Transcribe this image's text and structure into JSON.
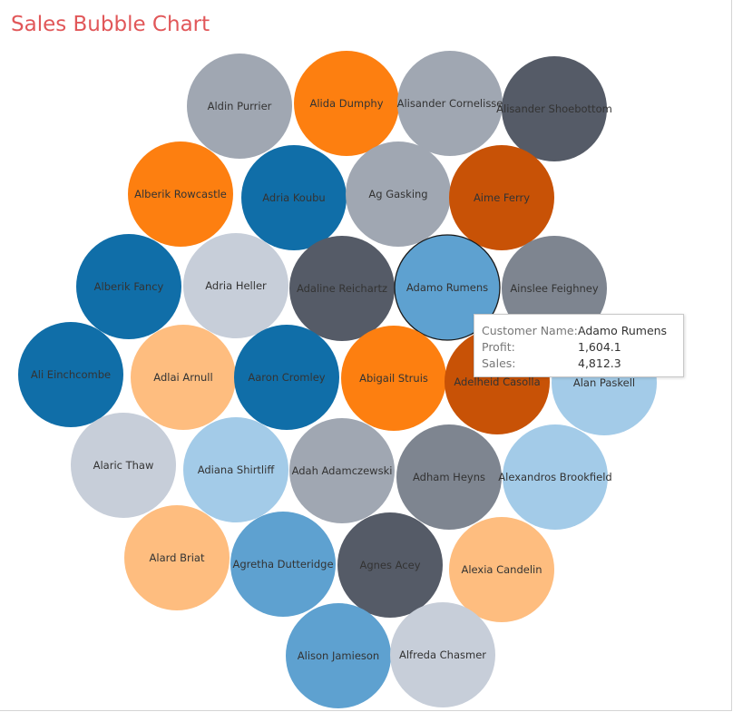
{
  "chart_data": {
    "type": "bubble",
    "title": "Sales Bubble Chart",
    "size_by": "Sales",
    "color_by": "Profit",
    "bubbles": [
      {
        "name": "Aldin Purrier",
        "color": "#a0a7b2"
      },
      {
        "name": "Alida Dumphy",
        "color": "#fd7f10"
      },
      {
        "name": "Alisander Cornelisse",
        "color": "#a0a7b2"
      },
      {
        "name": "Alisander Shoebottom",
        "color": "#555b67"
      },
      {
        "name": "Alberik Rowcastle",
        "color": "#fd7f10"
      },
      {
        "name": "Adria Koubu",
        "color": "#106ea8"
      },
      {
        "name": "Ag Gasking",
        "color": "#a0a7b2"
      },
      {
        "name": "Aime Ferry",
        "color": "#c85206"
      },
      {
        "name": "Alberik Fancy",
        "color": "#106ea8"
      },
      {
        "name": "Adria Heller",
        "color": "#c7ced9"
      },
      {
        "name": "Adaline Reichartz",
        "color": "#555b67"
      },
      {
        "name": "Adamo Rumens",
        "color": "#5ea1d0",
        "highlighted": true
      },
      {
        "name": "Ainslee Feighney",
        "color": "#7e8590"
      },
      {
        "name": "Ali Einchcombe",
        "color": "#106ea8"
      },
      {
        "name": "Adlai Arnull",
        "color": "#febd7f"
      },
      {
        "name": "Aaron Cromley",
        "color": "#106ea8"
      },
      {
        "name": "Abigail Struis",
        "color": "#fd7f10"
      },
      {
        "name": "Adelheid Casolla",
        "color": "#c85206"
      },
      {
        "name": "Alan Paskell",
        "color": "#a3cbe8"
      },
      {
        "name": "Alaric Thaw",
        "color": "#c7ced9"
      },
      {
        "name": "Adiana Shirtliff",
        "color": "#a3cbe8"
      },
      {
        "name": "Adah Adamczewski",
        "color": "#a0a7b2"
      },
      {
        "name": "Adham Heyns",
        "color": "#7e8590"
      },
      {
        "name": "Alexandros Brookfield",
        "color": "#a3cbe8"
      },
      {
        "name": "Alard Briat",
        "color": "#febd7f"
      },
      {
        "name": "Agretha Dutteridge",
        "color": "#5ea1d0"
      },
      {
        "name": "Agnes Acey",
        "color": "#555b67"
      },
      {
        "name": "Alexia Candelin",
        "color": "#febd7f"
      },
      {
        "name": "Alison Jamieson",
        "color": "#5ea1d0"
      },
      {
        "name": "Alfreda Chasmer",
        "color": "#c7ced9"
      }
    ],
    "tooltip": {
      "rows": [
        {
          "label": "Customer Name:",
          "value": "Adamo Rumens"
        },
        {
          "label": "Profit:",
          "value": "1,604.1"
        },
        {
          "label": "Sales:",
          "value": "4,812.3"
        }
      ]
    }
  }
}
